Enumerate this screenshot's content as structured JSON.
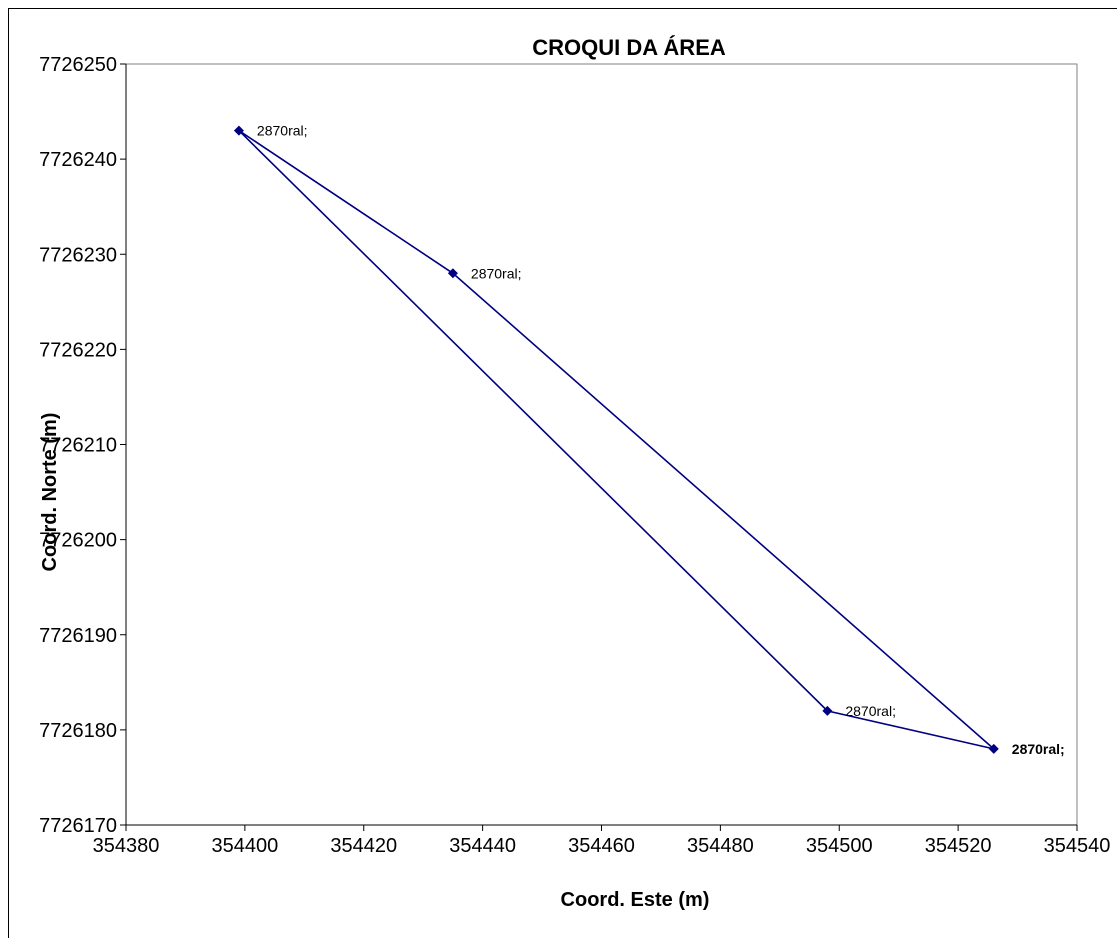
{
  "chart_data": {
    "type": "scatter",
    "title": "CROQUI DA ÁREA",
    "xlabel": "Coord. Este (m)",
    "ylabel": "Coord. Norte (m)",
    "xlim": [
      354380,
      354540
    ],
    "ylim": [
      7726170,
      7726250
    ],
    "xticks": [
      "354380",
      "354400",
      "354420",
      "354440",
      "354460",
      "354480",
      "354500",
      "354520",
      "354540"
    ],
    "yticks": [
      "7726170",
      "7726180",
      "7726190",
      "7726200",
      "7726210",
      "7726220",
      "7726230",
      "7726240",
      "7726250"
    ],
    "grid": false,
    "legend": "none",
    "line_color": "#000080",
    "series": [
      {
        "x": [
          354399,
          354435,
          354526,
          354498,
          354399
        ],
        "y": [
          7726243,
          7726228,
          7726178,
          7726182,
          7726243
        ],
        "labels": [
          "2870ral;",
          "2870ral;",
          "2870ral;",
          "2870ral;",
          ""
        ]
      }
    ]
  }
}
